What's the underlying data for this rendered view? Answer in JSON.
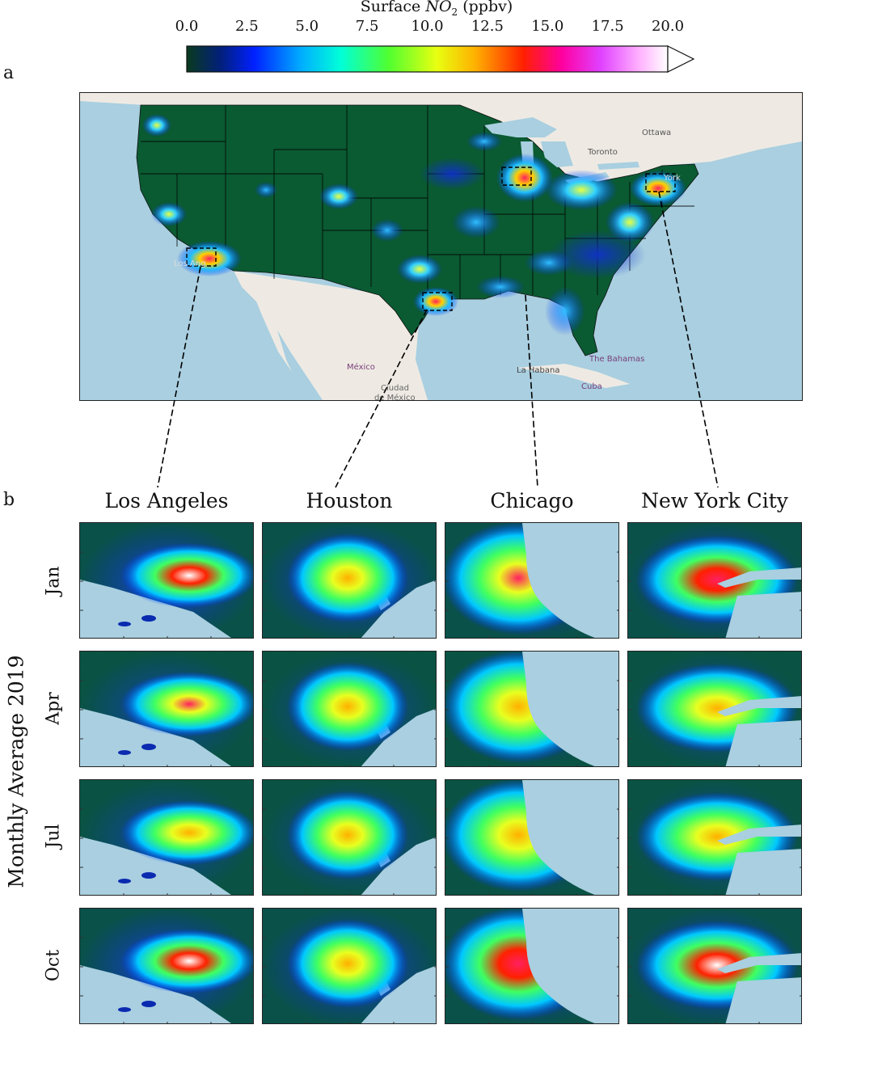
{
  "panel_labels": {
    "a": "a",
    "b": "b"
  },
  "colorbar": {
    "title_prefix": "Surface ",
    "title_var": "NO",
    "title_sub": "2",
    "title_suffix": " (ppbv)",
    "ticks": [
      "0.0",
      "2.5",
      "5.0",
      "7.5",
      "10.0",
      "12.5",
      "15.0",
      "17.5",
      "20.0"
    ],
    "range": [
      0,
      20
    ]
  },
  "map_labels": {
    "ottawa": "Ottawa",
    "toronto": "Toronto",
    "los_angeles": "Los Ang",
    "new_york": "York",
    "mexico": "México",
    "ciudad": "Ciudad",
    "de_mexico": "de México",
    "la_habana": "La Habana",
    "bahamas": "The Bahamas",
    "cuba": "Cuba"
  },
  "cities": [
    "Los Angeles",
    "Houston",
    "Chicago",
    "New York City"
  ],
  "months": [
    "Jan",
    "Apr",
    "Jul",
    "Oct"
  ],
  "y_axis_label": "Monthly Average 2019",
  "colors": {
    "ocean": "#a9cfe0",
    "land_outside": "#eeeae3",
    "low_no2": "#0a5a32",
    "border": "#111111"
  }
}
